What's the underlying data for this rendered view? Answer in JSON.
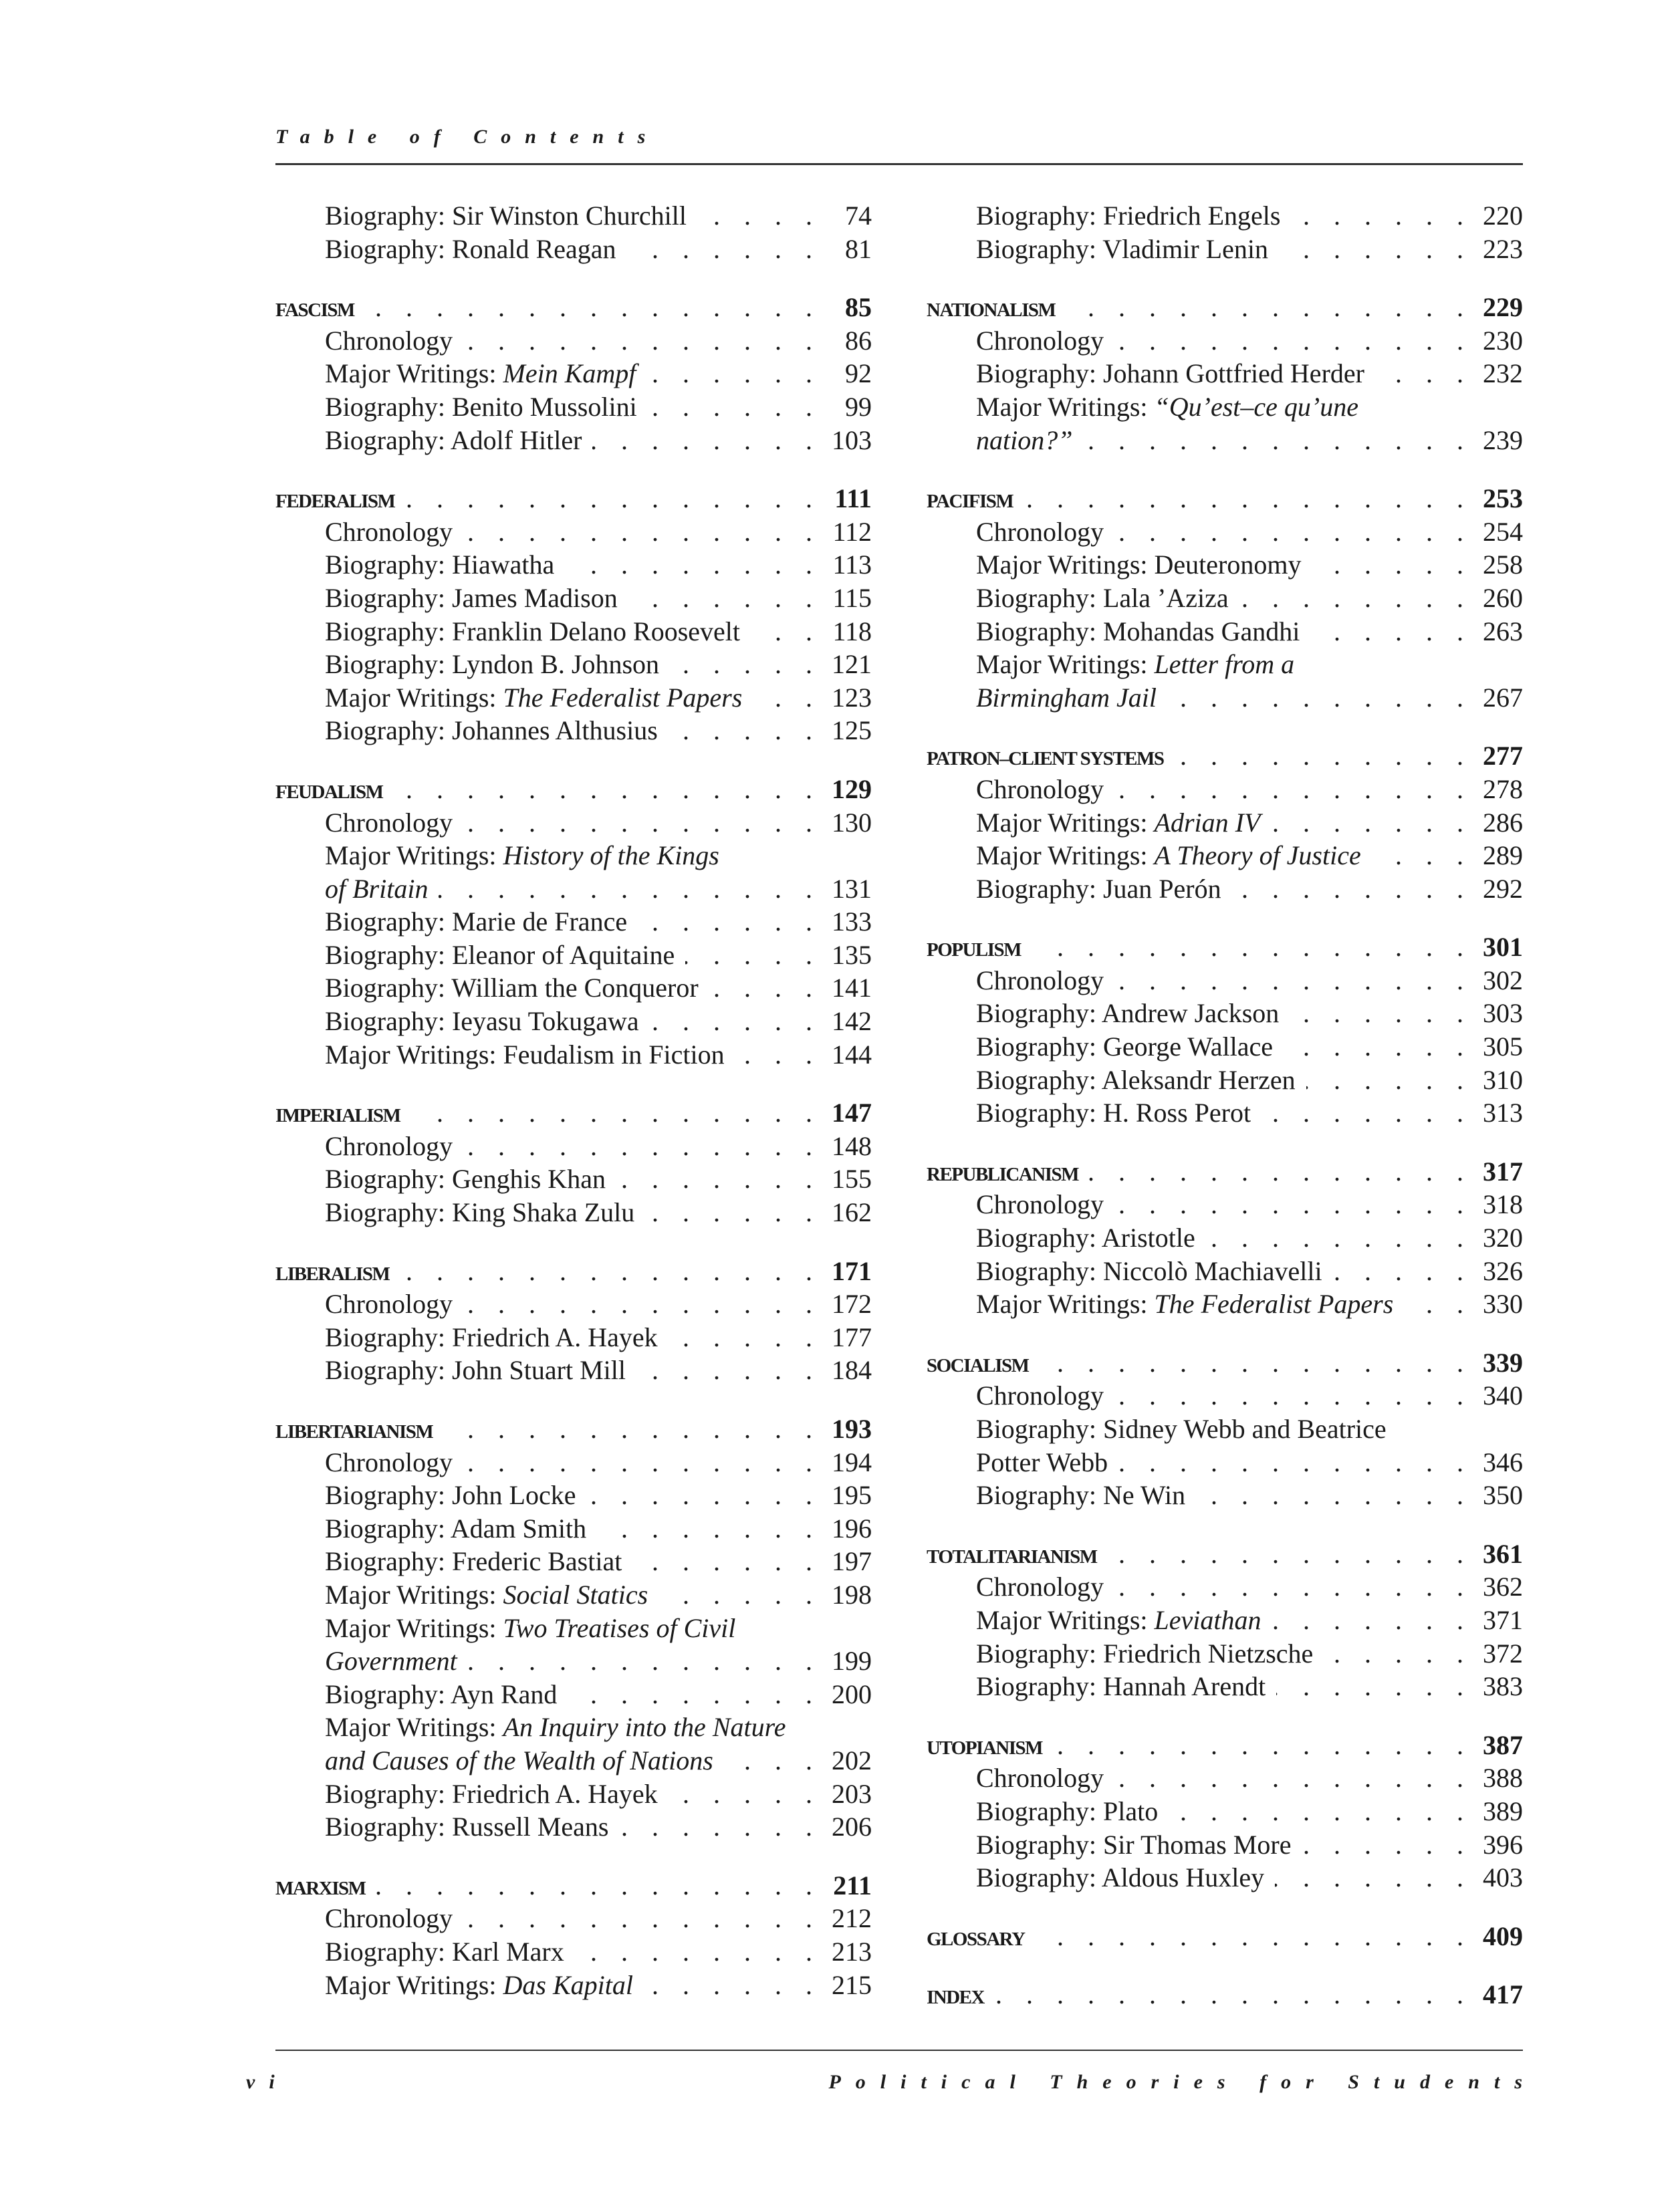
{
  "header": {
    "running_title": "Table of Contents"
  },
  "footer": {
    "page_number": "vi",
    "book_title": "Political Theories for Students"
  },
  "columns": [
    {
      "sections": [
        {
          "heading": null,
          "entries": [
            {
              "lines": [
                [
                  "Biography: Sir Winston Churchill"
                ]
              ],
              "page": "74"
            },
            {
              "lines": [
                [
                  "Biography: Ronald Reagan"
                ]
              ],
              "page": "81"
            }
          ]
        },
        {
          "heading": "FASCISM",
          "page": "85",
          "entries": [
            {
              "lines": [
                [
                  "Chronology"
                ]
              ],
              "page": "86"
            },
            {
              "lines": [
                [
                  "Major Writings: ",
                  {
                    "em": "Mein Kampf"
                  }
                ]
              ],
              "page": "92"
            },
            {
              "lines": [
                [
                  "Biography: Benito Mussolini"
                ]
              ],
              "page": "99"
            },
            {
              "lines": [
                [
                  "Biography: Adolf Hitler"
                ]
              ],
              "page": "103"
            }
          ]
        },
        {
          "heading": "FEDERALISM",
          "page": "111",
          "entries": [
            {
              "lines": [
                [
                  "Chronology"
                ]
              ],
              "page": "112"
            },
            {
              "lines": [
                [
                  "Biography: Hiawatha"
                ]
              ],
              "page": "113"
            },
            {
              "lines": [
                [
                  "Biography: James Madison"
                ]
              ],
              "page": "115"
            },
            {
              "lines": [
                [
                  "Biography: Franklin Delano Roosevelt"
                ]
              ],
              "page": "118"
            },
            {
              "lines": [
                [
                  "Biography: Lyndon B. Johnson"
                ]
              ],
              "page": "121"
            },
            {
              "lines": [
                [
                  "Major Writings: ",
                  {
                    "em": "The Federalist Papers"
                  }
                ]
              ],
              "page": "123"
            },
            {
              "lines": [
                [
                  "Biography: Johannes Althusius"
                ]
              ],
              "page": "125"
            }
          ]
        },
        {
          "heading": "FEUDALISM",
          "page": "129",
          "entries": [
            {
              "lines": [
                [
                  "Chronology"
                ]
              ],
              "page": "130"
            },
            {
              "lines": [
                [
                  "Major Writings: ",
                  {
                    "em": "History of the Kings"
                  }
                ],
                [
                  {
                    "em": "of Britain"
                  }
                ]
              ],
              "page": "131"
            },
            {
              "lines": [
                [
                  "Biography: Marie de France"
                ]
              ],
              "page": "133"
            },
            {
              "lines": [
                [
                  "Biography: Eleanor of Aquitaine"
                ]
              ],
              "page": "135"
            },
            {
              "lines": [
                [
                  "Biography: William the Conqueror"
                ]
              ],
              "page": "141"
            },
            {
              "lines": [
                [
                  "Biography: Ieyasu Tokugawa"
                ]
              ],
              "page": "142"
            },
            {
              "lines": [
                [
                  "Major Writings: Feudalism in Fiction"
                ]
              ],
              "page": "144"
            }
          ]
        },
        {
          "heading": "IMPERIALISM",
          "page": "147",
          "entries": [
            {
              "lines": [
                [
                  "Chronology"
                ]
              ],
              "page": "148"
            },
            {
              "lines": [
                [
                  "Biography: Genghis Khan"
                ]
              ],
              "page": "155"
            },
            {
              "lines": [
                [
                  "Biography: King Shaka Zulu"
                ]
              ],
              "page": "162"
            }
          ]
        },
        {
          "heading": "LIBERALISM",
          "page": "171",
          "entries": [
            {
              "lines": [
                [
                  "Chronology"
                ]
              ],
              "page": "172"
            },
            {
              "lines": [
                [
                  "Biography: Friedrich A. Hayek"
                ]
              ],
              "page": "177"
            },
            {
              "lines": [
                [
                  "Biography: John Stuart Mill"
                ]
              ],
              "page": "184"
            }
          ]
        },
        {
          "heading": "LIBERTARIANISM",
          "page": "193",
          "entries": [
            {
              "lines": [
                [
                  "Chronology"
                ]
              ],
              "page": "194"
            },
            {
              "lines": [
                [
                  "Biography: John Locke"
                ]
              ],
              "page": "195"
            },
            {
              "lines": [
                [
                  "Biography: Adam Smith"
                ]
              ],
              "page": "196"
            },
            {
              "lines": [
                [
                  "Biography: Frederic Bastiat"
                ]
              ],
              "page": "197"
            },
            {
              "lines": [
                [
                  "Major Writings: ",
                  {
                    "em": "Social Statics"
                  }
                ]
              ],
              "page": "198"
            },
            {
              "lines": [
                [
                  "Major Writings: ",
                  {
                    "em": "Two Treatises of Civil"
                  }
                ],
                [
                  {
                    "em": "Government"
                  }
                ]
              ],
              "page": "199"
            },
            {
              "lines": [
                [
                  "Biography: Ayn Rand"
                ]
              ],
              "page": "200"
            },
            {
              "lines": [
                [
                  "Major Writings: ",
                  {
                    "em": "An Inquiry into the Nature"
                  }
                ],
                [
                  {
                    "em": "and Causes of the Wealth of Nations"
                  }
                ]
              ],
              "page": "202"
            },
            {
              "lines": [
                [
                  "Biography: Friedrich A. Hayek"
                ]
              ],
              "page": "203"
            },
            {
              "lines": [
                [
                  "Biography: Russell Means"
                ]
              ],
              "page": "206"
            }
          ]
        },
        {
          "heading": "MARXISM",
          "page": "211",
          "entries": [
            {
              "lines": [
                [
                  "Chronology"
                ]
              ],
              "page": "212"
            },
            {
              "lines": [
                [
                  "Biography: Karl Marx"
                ]
              ],
              "page": "213"
            },
            {
              "lines": [
                [
                  "Major Writings: ",
                  {
                    "em": "Das Kapital"
                  }
                ]
              ],
              "page": "215"
            }
          ]
        }
      ]
    },
    {
      "sections": [
        {
          "heading": null,
          "entries": [
            {
              "lines": [
                [
                  "Biography: Friedrich Engels"
                ]
              ],
              "page": "220"
            },
            {
              "lines": [
                [
                  "Biography: Vladimir Lenin"
                ]
              ],
              "page": "223"
            }
          ]
        },
        {
          "heading": "NATIONALISM",
          "page": "229",
          "entries": [
            {
              "lines": [
                [
                  "Chronology"
                ]
              ],
              "page": "230"
            },
            {
              "lines": [
                [
                  "Biography: Johann Gottfried Herder"
                ]
              ],
              "page": "232"
            },
            {
              "lines": [
                [
                  "Major Writings: ",
                  {
                    "em": "“Qu’est–ce qu’une"
                  }
                ],
                [
                  {
                    "em": "nation?”"
                  }
                ]
              ],
              "page": "239"
            }
          ]
        },
        {
          "heading": "PACIFISM",
          "page": "253",
          "entries": [
            {
              "lines": [
                [
                  "Chronology"
                ]
              ],
              "page": "254"
            },
            {
              "lines": [
                [
                  "Major Writings: Deuteronomy"
                ]
              ],
              "page": "258"
            },
            {
              "lines": [
                [
                  "Biography: Lala ’Aziza"
                ]
              ],
              "page": "260"
            },
            {
              "lines": [
                [
                  "Biography: Mohandas Gandhi"
                ]
              ],
              "page": "263"
            },
            {
              "lines": [
                [
                  "Major Writings: ",
                  {
                    "em": "Letter from a"
                  }
                ],
                [
                  {
                    "em": "Birmingham Jail"
                  }
                ]
              ],
              "page": "267"
            }
          ]
        },
        {
          "heading": "PATRON–CLIENT SYSTEMS",
          "page": "277",
          "entries": [
            {
              "lines": [
                [
                  "Chronology"
                ]
              ],
              "page": "278"
            },
            {
              "lines": [
                [
                  "Major Writings: ",
                  {
                    "em": "Adrian IV"
                  }
                ]
              ],
              "page": "286"
            },
            {
              "lines": [
                [
                  "Major Writings: ",
                  {
                    "em": "A Theory of Justice"
                  }
                ]
              ],
              "page": "289"
            },
            {
              "lines": [
                [
                  "Biography: Juan Perón"
                ]
              ],
              "page": "292"
            }
          ]
        },
        {
          "heading": "POPULISM",
          "page": "301",
          "entries": [
            {
              "lines": [
                [
                  "Chronology"
                ]
              ],
              "page": "302"
            },
            {
              "lines": [
                [
                  "Biography: Andrew Jackson"
                ]
              ],
              "page": "303"
            },
            {
              "lines": [
                [
                  "Biography: George Wallace"
                ]
              ],
              "page": "305"
            },
            {
              "lines": [
                [
                  "Biography: Aleksandr Herzen"
                ]
              ],
              "page": "310"
            },
            {
              "lines": [
                [
                  "Biography: H. Ross Perot"
                ]
              ],
              "page": "313"
            }
          ]
        },
        {
          "heading": "REPUBLICANISM",
          "page": "317",
          "entries": [
            {
              "lines": [
                [
                  "Chronology"
                ]
              ],
              "page": "318"
            },
            {
              "lines": [
                [
                  "Biography: Aristotle"
                ]
              ],
              "page": "320"
            },
            {
              "lines": [
                [
                  "Biography: Niccolò Machiavelli"
                ]
              ],
              "page": "326"
            },
            {
              "lines": [
                [
                  "Major Writings: ",
                  {
                    "em": "The Federalist Papers"
                  }
                ]
              ],
              "page": "330"
            }
          ]
        },
        {
          "heading": "SOCIALISM",
          "page": "339",
          "entries": [
            {
              "lines": [
                [
                  "Chronology"
                ]
              ],
              "page": "340"
            },
            {
              "lines": [
                [
                  "Biography: Sidney Webb and Beatrice"
                ],
                [
                  "Potter Webb"
                ]
              ],
              "page": "346"
            },
            {
              "lines": [
                [
                  "Biography: Ne Win"
                ]
              ],
              "page": "350"
            }
          ]
        },
        {
          "heading": "TOTALITARIANISM",
          "page": "361",
          "entries": [
            {
              "lines": [
                [
                  "Chronology"
                ]
              ],
              "page": "362"
            },
            {
              "lines": [
                [
                  "Major Writings: ",
                  {
                    "em": "Leviathan"
                  }
                ]
              ],
              "page": "371"
            },
            {
              "lines": [
                [
                  "Biography: Friedrich Nietzsche"
                ]
              ],
              "page": "372"
            },
            {
              "lines": [
                [
                  "Biography: Hannah Arendt"
                ]
              ],
              "page": "383"
            }
          ]
        },
        {
          "heading": "UTOPIANISM",
          "page": "387",
          "entries": [
            {
              "lines": [
                [
                  "Chronology"
                ]
              ],
              "page": "388"
            },
            {
              "lines": [
                [
                  "Biography: Plato"
                ]
              ],
              "page": "389"
            },
            {
              "lines": [
                [
                  "Biography: Sir Thomas More"
                ]
              ],
              "page": "396"
            },
            {
              "lines": [
                [
                  "Biography: Aldous Huxley"
                ]
              ],
              "page": "403"
            }
          ]
        },
        {
          "heading": "GLOSSARY",
          "page": "409",
          "entries": []
        },
        {
          "heading": "INDEX",
          "page": "417",
          "entries": []
        }
      ]
    }
  ]
}
